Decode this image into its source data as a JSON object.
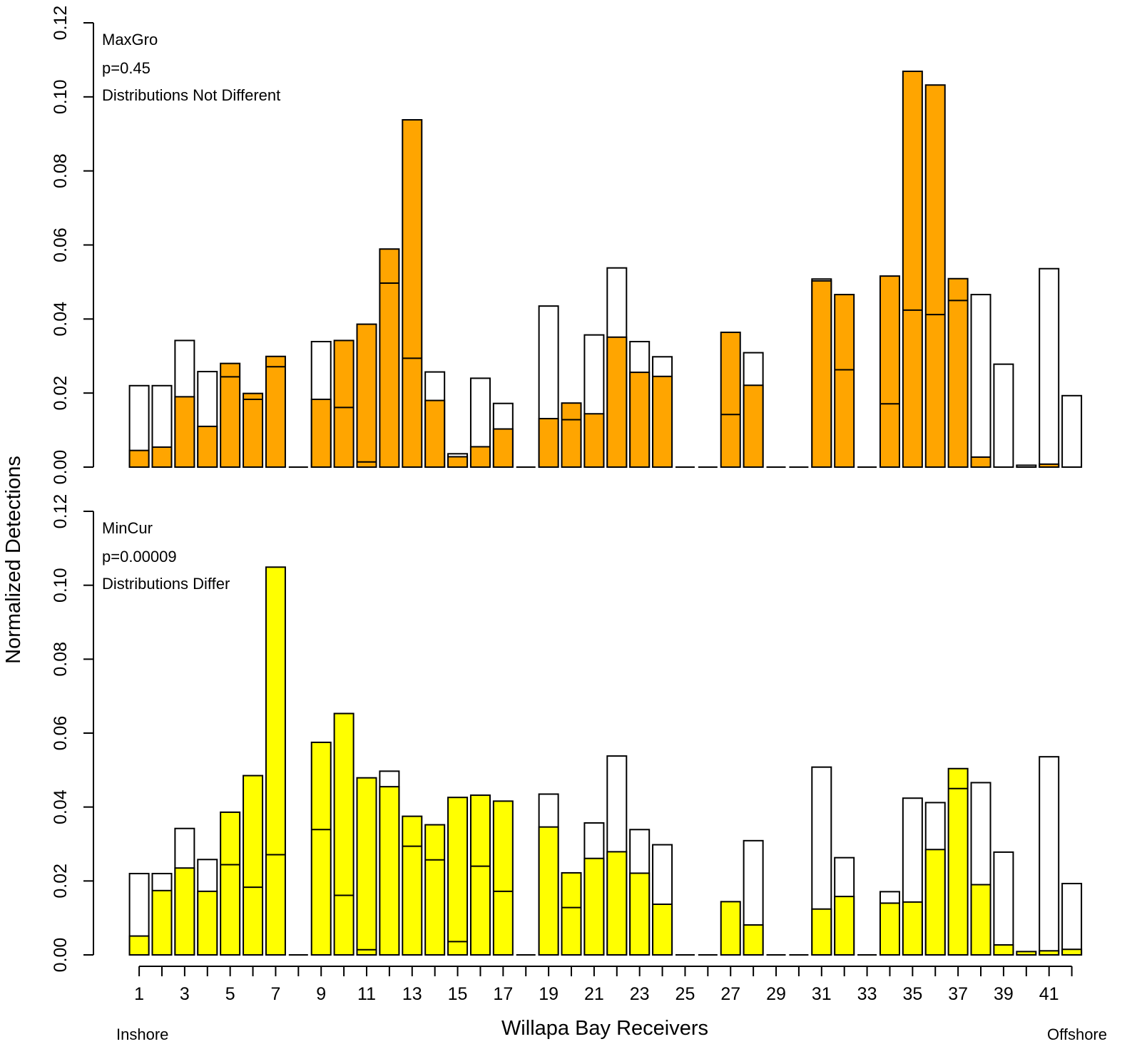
{
  "chart_data": [
    {
      "type": "bar",
      "panel": "top",
      "annotations": [
        "MaxGro",
        "p=0.45",
        "Distributions Not Different"
      ],
      "fill_color": "#FFA500",
      "ylim": [
        0,
        0.12
      ],
      "yticks": [
        "0.00",
        "0.02",
        "0.04",
        "0.06",
        "0.08",
        "0.10",
        "0.12"
      ],
      "categories": [
        1,
        2,
        3,
        4,
        5,
        6,
        7,
        8,
        9,
        10,
        11,
        12,
        13,
        14,
        15,
        16,
        17,
        18,
        19,
        20,
        21,
        22,
        23,
        24,
        25,
        26,
        27,
        28,
        29,
        30,
        31,
        32,
        33,
        34,
        35,
        36,
        37,
        38,
        39,
        40,
        41,
        42
      ],
      "series": [
        {
          "values": [
            0.022,
            0.022,
            0.0342,
            0.0258,
            0.0,
            0.0,
            0.0,
            0.0,
            0.0339,
            0.0,
            0.0,
            0.0,
            0.0,
            0.0257,
            0.0036,
            0.024,
            0.0172,
            0.0,
            0.0435,
            0.0,
            0.0357,
            0.0538,
            0.0339,
            0.0298,
            0.0,
            0.0,
            0.0,
            0.0309,
            0.0,
            0.0,
            0.0508,
            0.0,
            0.0,
            0.0,
            0.0,
            0.0,
            0.0,
            0.0466,
            0.0278,
            0.0005,
            0.0536,
            0.0193
          ]
        },
        {
          "values": [
            0.0045,
            0.0054,
            0.019,
            0.011,
            0.028,
            0.0199,
            0.0299,
            0.0,
            0.0183,
            0.0342,
            0.0386,
            0.0589,
            0.0938,
            0.018,
            0.0028,
            0.0055,
            0.0103,
            0.0,
            0.0131,
            0.0173,
            0.0144,
            0.0351,
            0.0256,
            0.0245,
            0.0,
            0.0,
            0.0364,
            0.0221,
            0.0,
            0.0,
            0.0503,
            0.0466,
            0.0,
            0.0516,
            0.1069,
            0.1032,
            0.0509,
            0.0027,
            0.0,
            0.0,
            0.0008,
            0.0
          ]
        }
      ],
      "inner_values": [
        null,
        null,
        null,
        null,
        0.0244,
        0.0183,
        0.0271,
        null,
        null,
        0.0161,
        0.0014,
        0.0497,
        0.0294,
        null,
        null,
        null,
        null,
        null,
        null,
        0.0128,
        null,
        null,
        null,
        null,
        null,
        null,
        0.0142,
        null,
        null,
        null,
        null,
        0.0263,
        null,
        0.0171,
        0.0424,
        0.0412,
        0.045,
        null,
        null,
        null,
        null,
        null
      ]
    },
    {
      "type": "bar",
      "panel": "bottom",
      "annotations": [
        "MinCur",
        "p=0.00009",
        "Distributions Differ"
      ],
      "fill_color": "#FFFF00",
      "ylim": [
        0,
        0.12
      ],
      "yticks": [
        "0.00",
        "0.02",
        "0.04",
        "0.06",
        "0.08",
        "0.10",
        "0.12"
      ],
      "categories": [
        1,
        2,
        3,
        4,
        5,
        6,
        7,
        8,
        9,
        10,
        11,
        12,
        13,
        14,
        15,
        16,
        17,
        18,
        19,
        20,
        21,
        22,
        23,
        24,
        25,
        26,
        27,
        28,
        29,
        30,
        31,
        32,
        33,
        34,
        35,
        36,
        37,
        38,
        39,
        40,
        41,
        42
      ],
      "series": [
        {
          "values": [
            0.022,
            0.022,
            0.0342,
            0.0258,
            0.0,
            0.0,
            0.0,
            0.0,
            0.0,
            0.0,
            0.0,
            0.0497,
            0.0,
            0.0,
            0.0,
            0.0,
            0.0,
            0.0,
            0.0435,
            0.0,
            0.0357,
            0.0538,
            0.0339,
            0.0298,
            0.0,
            0.0,
            0.0,
            0.0309,
            0.0,
            0.0,
            0.0508,
            0.0263,
            0.0,
            0.0171,
            0.0424,
            0.0412,
            0.0,
            0.0466,
            0.0278,
            0.0,
            0.0536,
            0.0193
          ]
        },
        {
          "values": [
            0.0051,
            0.0174,
            0.0235,
            0.0172,
            0.0386,
            0.0485,
            0.1049,
            0.0,
            0.0575,
            0.0653,
            0.0479,
            0.0455,
            0.0375,
            0.0352,
            0.0426,
            0.0432,
            0.0416,
            0.0,
            0.0346,
            0.0222,
            0.0261,
            0.0279,
            0.0221,
            0.0137,
            0.0,
            0.0,
            0.0144,
            0.0081,
            0.0,
            0.0,
            0.0124,
            0.0158,
            0.0,
            0.014,
            0.0143,
            0.0285,
            0.0504,
            0.019,
            0.0027,
            0.0009,
            0.0011,
            0.0015
          ]
        }
      ],
      "inner_values": [
        null,
        null,
        null,
        null,
        0.0244,
        0.0183,
        0.0271,
        null,
        0.0339,
        0.0161,
        0.0014,
        null,
        0.0294,
        0.0257,
        0.0036,
        0.024,
        0.0172,
        null,
        null,
        0.0128,
        null,
        null,
        null,
        null,
        null,
        null,
        null,
        null,
        null,
        null,
        null,
        null,
        null,
        null,
        null,
        null,
        0.045,
        null,
        null,
        null,
        null,
        null
      ]
    }
  ],
  "axes": {
    "xlabel": "Willapa Bay Receivers",
    "ylabel": "Normalized Detections",
    "xtick_labels": [
      "1",
      "3",
      "5",
      "7",
      "9",
      "11",
      "13",
      "15",
      "17",
      "19",
      "21",
      "23",
      "25",
      "27",
      "29",
      "31",
      "33",
      "35",
      "37",
      "39",
      "41"
    ],
    "left_label": "Inshore",
    "right_label": "Offshore"
  }
}
